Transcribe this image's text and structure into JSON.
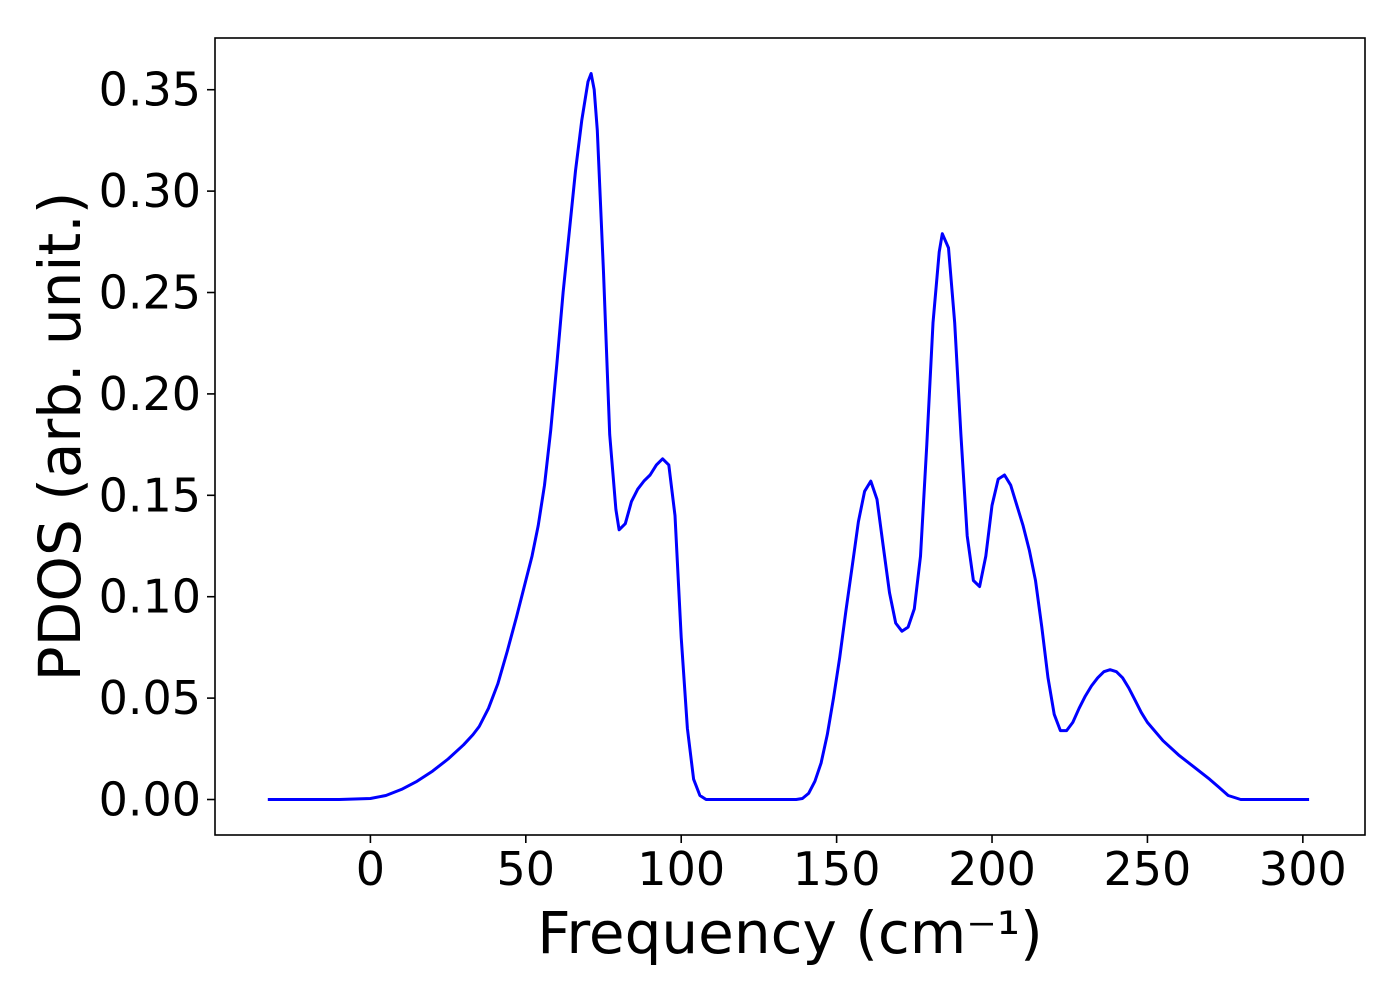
{
  "chart_data": {
    "type": "line",
    "title": "",
    "xlabel": "Frequency (cm⁻¹)",
    "ylabel": "PDOS (arb. unit.)",
    "xlim": [
      -50,
      320
    ],
    "ylim": [
      -0.0175,
      0.3755
    ],
    "xticks": [
      0,
      50,
      100,
      150,
      200,
      250,
      300
    ],
    "xtick_labels": [
      "0",
      "50",
      "100",
      "150",
      "200",
      "250",
      "300"
    ],
    "yticks": [
      0.0,
      0.05,
      0.1,
      0.15,
      0.2,
      0.25,
      0.3,
      0.35
    ],
    "ytick_labels": [
      "0.00",
      "0.05",
      "0.10",
      "0.15",
      "0.20",
      "0.25",
      "0.30",
      "0.35"
    ],
    "grid": false,
    "legend": "none",
    "series": [
      {
        "color": "#0000ff",
        "x": [
          -33,
          -20,
          -10,
          0,
          5,
          10,
          15,
          20,
          25,
          30,
          33,
          35,
          38,
          41,
          44,
          47,
          50,
          52,
          54,
          56,
          58,
          60,
          62,
          64,
          66,
          68,
          70,
          71,
          72,
          73,
          75,
          77,
          79,
          80,
          82,
          84,
          86,
          88,
          90,
          92,
          94,
          96,
          98,
          100,
          102,
          104,
          106,
          108,
          110,
          115,
          120,
          125,
          130,
          135,
          137,
          139,
          141,
          143,
          145,
          147,
          149,
          151,
          153,
          155,
          157,
          159,
          161,
          163,
          165,
          167,
          169,
          171,
          173,
          175,
          177,
          179,
          181,
          183,
          184,
          186,
          188,
          190,
          192,
          194,
          196,
          198,
          200,
          202,
          204,
          206,
          208,
          210,
          212,
          214,
          216,
          218,
          220,
          222,
          224,
          226,
          228,
          230,
          232,
          234,
          236,
          238,
          240,
          242,
          244,
          246,
          248,
          250,
          255,
          260,
          265,
          270,
          273,
          276,
          278,
          280,
          285,
          290,
          295,
          302
        ],
        "y": [
          0.0,
          0.0,
          0.0,
          0.0005,
          0.002,
          0.005,
          0.009,
          0.014,
          0.02,
          0.027,
          0.032,
          0.036,
          0.045,
          0.057,
          0.073,
          0.09,
          0.108,
          0.12,
          0.135,
          0.155,
          0.182,
          0.215,
          0.25,
          0.28,
          0.31,
          0.335,
          0.354,
          0.358,
          0.35,
          0.33,
          0.26,
          0.18,
          0.143,
          0.133,
          0.136,
          0.147,
          0.153,
          0.157,
          0.16,
          0.165,
          0.168,
          0.165,
          0.14,
          0.08,
          0.035,
          0.01,
          0.002,
          0.0,
          0.0,
          0.0,
          0.0,
          0.0,
          0.0,
          0.0,
          0.0,
          0.0005,
          0.003,
          0.009,
          0.018,
          0.032,
          0.05,
          0.07,
          0.093,
          0.115,
          0.137,
          0.152,
          0.157,
          0.148,
          0.125,
          0.102,
          0.087,
          0.083,
          0.085,
          0.094,
          0.12,
          0.175,
          0.235,
          0.27,
          0.279,
          0.272,
          0.235,
          0.18,
          0.13,
          0.108,
          0.105,
          0.12,
          0.145,
          0.158,
          0.16,
          0.155,
          0.145,
          0.135,
          0.123,
          0.108,
          0.085,
          0.06,
          0.042,
          0.034,
          0.034,
          0.038,
          0.045,
          0.051,
          0.056,
          0.06,
          0.063,
          0.064,
          0.063,
          0.06,
          0.055,
          0.049,
          0.043,
          0.038,
          0.029,
          0.022,
          0.016,
          0.01,
          0.006,
          0.002,
          0.001,
          0.0,
          0.0,
          0.0,
          0.0,
          0.0
        ]
      }
    ]
  }
}
